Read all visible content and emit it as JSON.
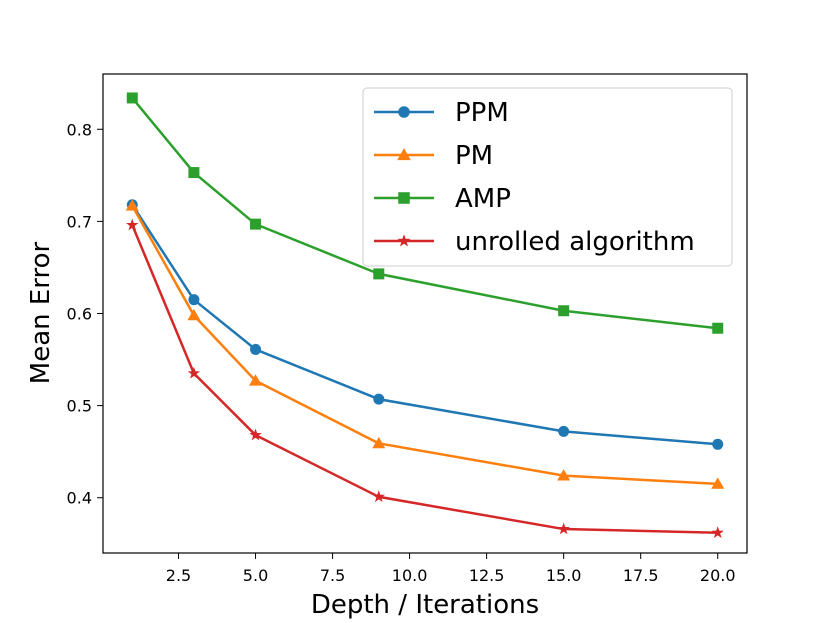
{
  "chart_data": {
    "type": "line",
    "title": "",
    "xlabel": "Depth / Iterations",
    "ylabel": "Mean Error",
    "xlim": [
      0.05,
      20.95
    ],
    "ylim": [
      0.34,
      0.86
    ],
    "grid": false,
    "legend_position": "top-right",
    "x_ticks": [
      2.5,
      5.0,
      7.5,
      10.0,
      12.5,
      15.0,
      17.5,
      20.0
    ],
    "x_tick_labels": [
      "2.5",
      "5.0",
      "7.5",
      "10.0",
      "12.5",
      "15.0",
      "17.5",
      "20.0"
    ],
    "y_ticks": [
      0.4,
      0.5,
      0.6,
      0.7,
      0.8
    ],
    "y_tick_labels": [
      "0.4",
      "0.5",
      "0.6",
      "0.7",
      "0.8"
    ],
    "x": [
      1,
      3,
      5,
      9,
      15,
      20
    ],
    "series": [
      {
        "name": "PPM",
        "color": "#1f77b4",
        "marker": "circle",
        "values": [
          0.718,
          0.615,
          0.561,
          0.507,
          0.472,
          0.458
        ]
      },
      {
        "name": "PM",
        "color": "#ff7f0e",
        "marker": "triangle",
        "values": [
          0.717,
          0.598,
          0.527,
          0.459,
          0.424,
          0.415
        ]
      },
      {
        "name": "AMP",
        "color": "#2ca02c",
        "marker": "square",
        "values": [
          0.834,
          0.753,
          0.697,
          0.643,
          0.603,
          0.584
        ]
      },
      {
        "name": "unrolled algorithm",
        "color": "#d62728",
        "marker": "star",
        "values": [
          0.696,
          0.535,
          0.468,
          0.401,
          0.366,
          0.362
        ]
      }
    ]
  }
}
